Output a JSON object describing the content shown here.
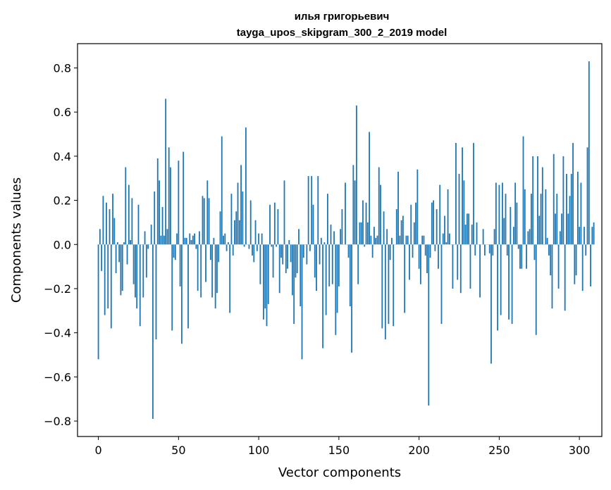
{
  "chart_data": {
    "type": "bar",
    "title": "илья григорьевич",
    "subtitle": "tayga_upos_skipgram_300_2_2019 model",
    "xlabel": "Vector components",
    "ylabel": "Components values",
    "xlim": [
      -13,
      314
    ],
    "ylim": [
      -0.87,
      0.91
    ],
    "xticks": [
      0,
      50,
      100,
      150,
      200,
      250,
      300
    ],
    "yticks": [
      -0.8,
      -0.6,
      -0.4,
      -0.2,
      0.0,
      0.2,
      0.4,
      0.6,
      0.8
    ],
    "ytick_labels": [
      "−0.8",
      "−0.6",
      "−0.4",
      "−0.2",
      "0.0",
      "0.2",
      "0.4",
      "0.6",
      "0.8"
    ],
    "grid": false,
    "bar_color": "#1f77b4",
    "values": [
      -0.52,
      0.07,
      -0.12,
      0.22,
      -0.32,
      0.19,
      -0.29,
      0.16,
      -0.38,
      0.23,
      0.12,
      -0.13,
      0.01,
      -0.08,
      -0.23,
      -0.21,
      0.01,
      0.35,
      -0.09,
      0.27,
      0.02,
      0.21,
      -0.18,
      -0.24,
      -0.29,
      0.18,
      -0.37,
      0.0,
      -0.24,
      0.06,
      -0.15,
      -0.02,
      0.0,
      0.09,
      -0.79,
      0.24,
      -0.43,
      0.39,
      0.29,
      0.04,
      0.17,
      0.04,
      0.66,
      0.07,
      0.44,
      0.35,
      -0.39,
      -0.06,
      -0.07,
      0.05,
      0.38,
      -0.19,
      -0.45,
      0.42,
      0.03,
      0.03,
      -0.38,
      0.05,
      0.02,
      0.04,
      0.05,
      -0.02,
      -0.21,
      0.06,
      -0.24,
      0.22,
      0.21,
      -0.17,
      0.29,
      0.21,
      -0.07,
      -0.24,
      0.03,
      -0.29,
      -0.22,
      -0.08,
      0.15,
      0.49,
      0.04,
      0.05,
      -0.03,
      0.01,
      -0.31,
      0.23,
      -0.05,
      0.11,
      0.15,
      0.28,
      0.11,
      0.36,
      0.24,
      -0.01,
      0.53,
      0.0,
      -0.02,
      0.2,
      -0.05,
      -0.08,
      0.11,
      -0.03,
      0.05,
      -0.18,
      0.05,
      -0.34,
      -0.29,
      -0.37,
      -0.27,
      0.18,
      -0.01,
      -0.15,
      0.19,
      -0.01,
      0.16,
      -0.22,
      -0.06,
      -0.09,
      0.29,
      -0.13,
      -0.11,
      0.02,
      -0.08,
      -0.23,
      -0.36,
      -0.15,
      -0.13,
      0.07,
      -0.28,
      -0.52,
      -0.06,
      0.0,
      -0.09,
      0.31,
      -0.03,
      0.31,
      0.18,
      -0.15,
      -0.21,
      0.31,
      -0.09,
      0.03,
      -0.47,
      0.01,
      -0.32,
      0.23,
      -0.19,
      0.09,
      -0.18,
      0.06,
      -0.41,
      -0.31,
      -0.19,
      0.07,
      0.16,
      0.0,
      0.28,
      0.0,
      -0.06,
      -0.28,
      -0.49,
      0.36,
      0.29,
      0.63,
      -0.18,
      0.1,
      0.1,
      0.2,
      -0.01,
      0.19,
      0.1,
      0.51,
      0.04,
      -0.06,
      0.08,
      0.03,
      0.04,
      0.35,
      0.27,
      -0.38,
      0.15,
      -0.43,
      0.07,
      -0.36,
      -0.07,
      0.03,
      -0.37,
      0.0,
      0.16,
      0.33,
      0.04,
      0.11,
      0.13,
      -0.31,
      0.04,
      0.04,
      -0.16,
      0.18,
      -0.06,
      0.1,
      0.19,
      0.34,
      -0.11,
      -0.18,
      0.04,
      0.04,
      -0.05,
      -0.13,
      -0.73,
      -0.06,
      0.19,
      0.2,
      -0.03,
      0.16,
      -0.11,
      0.27,
      -0.36,
      0.05,
      0.13,
      0.01,
      0.25,
      0.05,
      0.0,
      -0.2,
      0.0,
      0.46,
      -0.16,
      0.32,
      -0.22,
      0.44,
      0.29,
      0.09,
      0.14,
      0.14,
      -0.2,
      0.09,
      0.46,
      -0.05,
      0.1,
      0.0,
      -0.24,
      0.0,
      0.07,
      -0.05,
      0.0,
      0.0,
      -0.04,
      -0.54,
      -0.05,
      0.07,
      0.28,
      -0.39,
      0.27,
      -0.32,
      0.28,
      0.12,
      0.23,
      -0.05,
      -0.34,
      0.17,
      -0.36,
      0.08,
      0.28,
      0.19,
      -0.02,
      -0.11,
      -0.11,
      0.49,
      0.25,
      -0.11,
      0.06,
      0.07,
      0.23,
      0.4,
      -0.07,
      -0.41,
      0.4,
      0.13,
      0.23,
      0.35,
      0.0,
      0.25,
      0.03,
      -0.05,
      -0.14,
      -0.29,
      0.41,
      0.14,
      0.23,
      -0.2,
      0.06,
      0.14,
      0.4,
      -0.3,
      0.32,
      0.14,
      0.22,
      0.32,
      0.46,
      -0.18,
      -0.14,
      0.33,
      0.08,
      0.28,
      -0.21,
      0.08,
      -0.05,
      0.44,
      0.83,
      -0.19,
      0.08,
      0.1
    ]
  }
}
